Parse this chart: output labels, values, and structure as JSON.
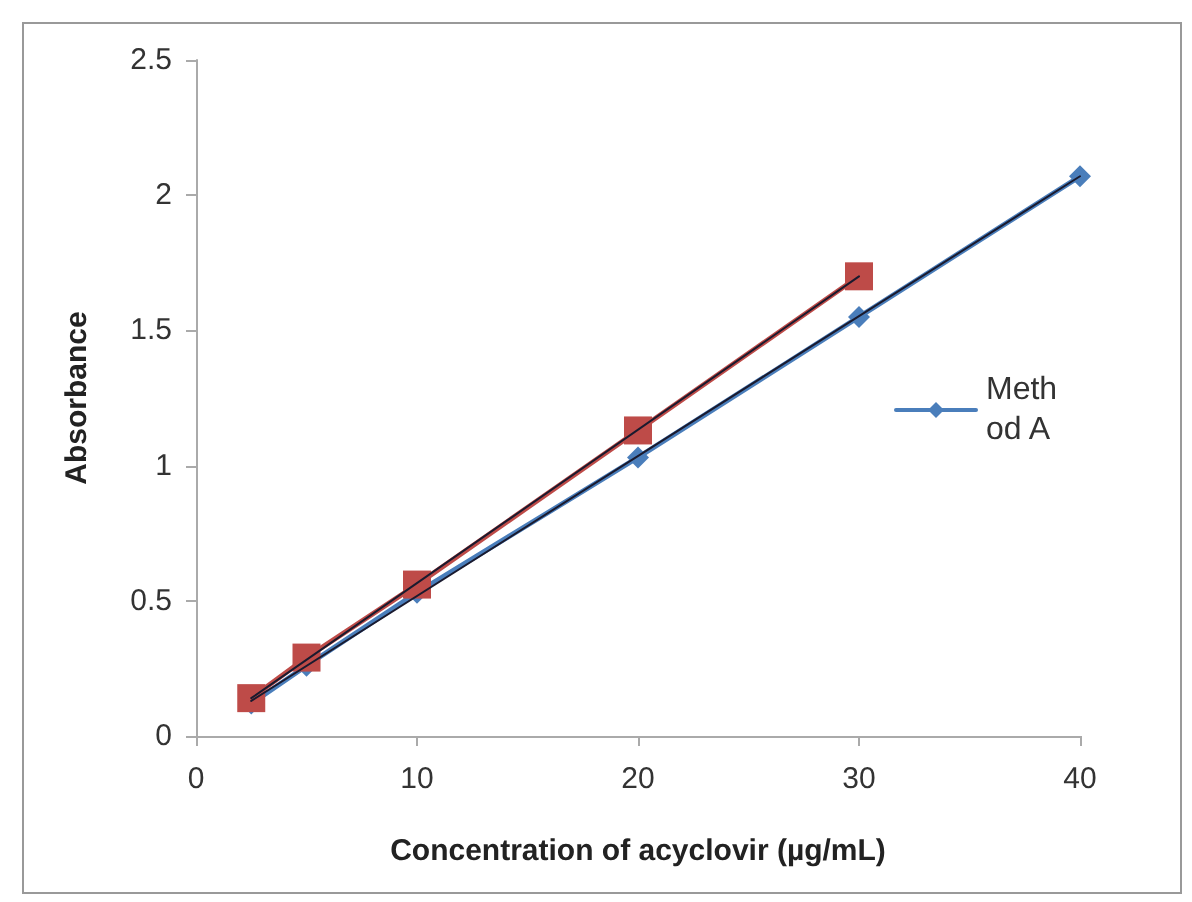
{
  "chart_data": {
    "type": "line",
    "xlabel": "Concentration of acyclovir (µg/mL)",
    "ylabel": "Absorbance",
    "xlim": [
      0,
      40
    ],
    "xticks": [
      0,
      10,
      20,
      30,
      40
    ],
    "ylim": [
      0,
      2.5
    ],
    "yticks": [
      0,
      0.5,
      1,
      1.5,
      2,
      2.5
    ],
    "grid": false,
    "legend": "right",
    "series": [
      {
        "name": "Method A",
        "color": "#4a7ebb",
        "marker": "diamond",
        "x": [
          2.5,
          5,
          10,
          20,
          30,
          40
        ],
        "values": [
          0.12,
          0.26,
          0.53,
          1.03,
          1.55,
          2.07
        ]
      },
      {
        "color": "#be4b48",
        "marker": "square",
        "x": [
          2.5,
          5,
          10,
          20,
          30
        ],
        "values": [
          0.14,
          0.29,
          0.56,
          1.13,
          1.7
        ]
      },
      {
        "color": "#1a1a2e",
        "marker": "none",
        "x": [
          2.5,
          40
        ],
        "values": [
          0.13,
          2.07
        ]
      },
      {
        "color": "#1a1a2e",
        "marker": "none",
        "x": [
          2.5,
          30
        ],
        "values": [
          0.14,
          1.7
        ]
      }
    ]
  }
}
